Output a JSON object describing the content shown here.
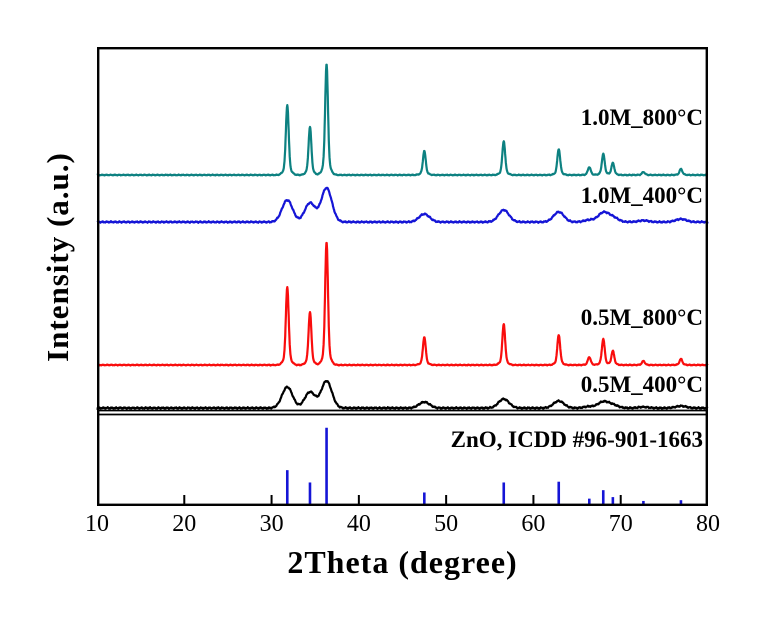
{
  "figure": {
    "kind": "XRD diffraction patterns, stacked traces with reference stick pattern",
    "background_color": "#ffffff",
    "frame_color": "#000000"
  },
  "chart_data": {
    "type": "line",
    "title": "",
    "xlabel": "2Theta (degree)",
    "ylabel": "Intensity (a.u.)",
    "x_range": [
      10,
      80
    ],
    "x_ticks": [
      10,
      20,
      30,
      40,
      50,
      60,
      70,
      80
    ],
    "y_ticks": [],
    "grid": false,
    "legend_position": "inline-right-above-each-trace",
    "peak_positions_2theta": [
      31.8,
      34.4,
      36.3,
      47.5,
      56.6,
      62.9,
      66.4,
      68.0,
      69.1,
      72.6,
      76.9
    ],
    "series": [
      {
        "name": "1.0M_800°C",
        "color": "#0d8181",
        "profile": "sharp",
        "peak_heights": [
          70,
          48,
          111,
          24,
          34,
          26,
          8,
          21,
          12,
          3,
          6
        ]
      },
      {
        "name": "1.0M_400°C",
        "color": "#1515d6",
        "profile": "broad",
        "peak_heights": [
          22,
          19,
          34,
          8,
          12,
          10,
          2,
          9,
          4.5,
          1.5,
          3
        ]
      },
      {
        "name": "0.5M_800°C",
        "color": "#f90d0d",
        "profile": "sharp",
        "peak_heights": [
          78,
          53,
          123,
          28,
          41,
          30,
          8,
          26,
          14,
          4,
          6
        ]
      },
      {
        "name": "0.5M_400°C",
        "color": "#000000",
        "profile": "broad",
        "peak_heights": [
          21,
          16,
          27,
          6,
          9,
          7,
          1.5,
          6,
          3,
          1,
          2
        ]
      }
    ],
    "reference": {
      "name": "ZnO, ICDD #96-901-1663",
      "color": "#1515d6",
      "positions_2theta": [
        31.8,
        34.4,
        36.3,
        47.5,
        56.6,
        62.9,
        66.4,
        68.0,
        69.1,
        72.6,
        76.9
      ],
      "relative_intensities": [
        45,
        29,
        100,
        16,
        29,
        30,
        8,
        19,
        10,
        5,
        6
      ]
    }
  }
}
